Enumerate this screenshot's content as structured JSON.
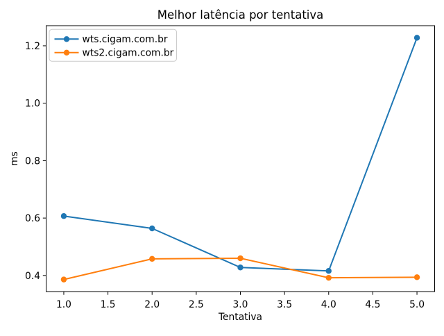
{
  "page": {
    "background_color": "#ffffff",
    "text_color": "#000000"
  },
  "chart_data": {
    "type": "line",
    "title": "Melhor latência por tentativa",
    "xlabel": "Tentativa",
    "ylabel": "ms",
    "x": [
      1,
      2,
      3,
      4,
      5
    ],
    "series": [
      {
        "name": "wts.cigam.com.br",
        "color": "#1f77b4",
        "values": [
          0.607,
          0.564,
          0.428,
          0.416,
          1.228
        ]
      },
      {
        "name": "wts2.cigam.com.br",
        "color": "#ff7f0e",
        "values": [
          0.386,
          0.458,
          0.46,
          0.392,
          0.394
        ]
      }
    ],
    "xlim": [
      0.8,
      5.2
    ],
    "ylim": [
      0.344,
      1.27
    ],
    "xticks": [
      1.0,
      1.5,
      2.0,
      2.5,
      3.0,
      3.5,
      4.0,
      4.5,
      5.0
    ],
    "yticks": [
      0.4,
      0.6,
      0.8,
      1.0,
      1.2
    ],
    "tick_decimals": 1,
    "grid": false,
    "legend_position": "upper-left",
    "marker": "circle",
    "spine_color": "#000000",
    "legend_border_color": "#cccccc"
  }
}
